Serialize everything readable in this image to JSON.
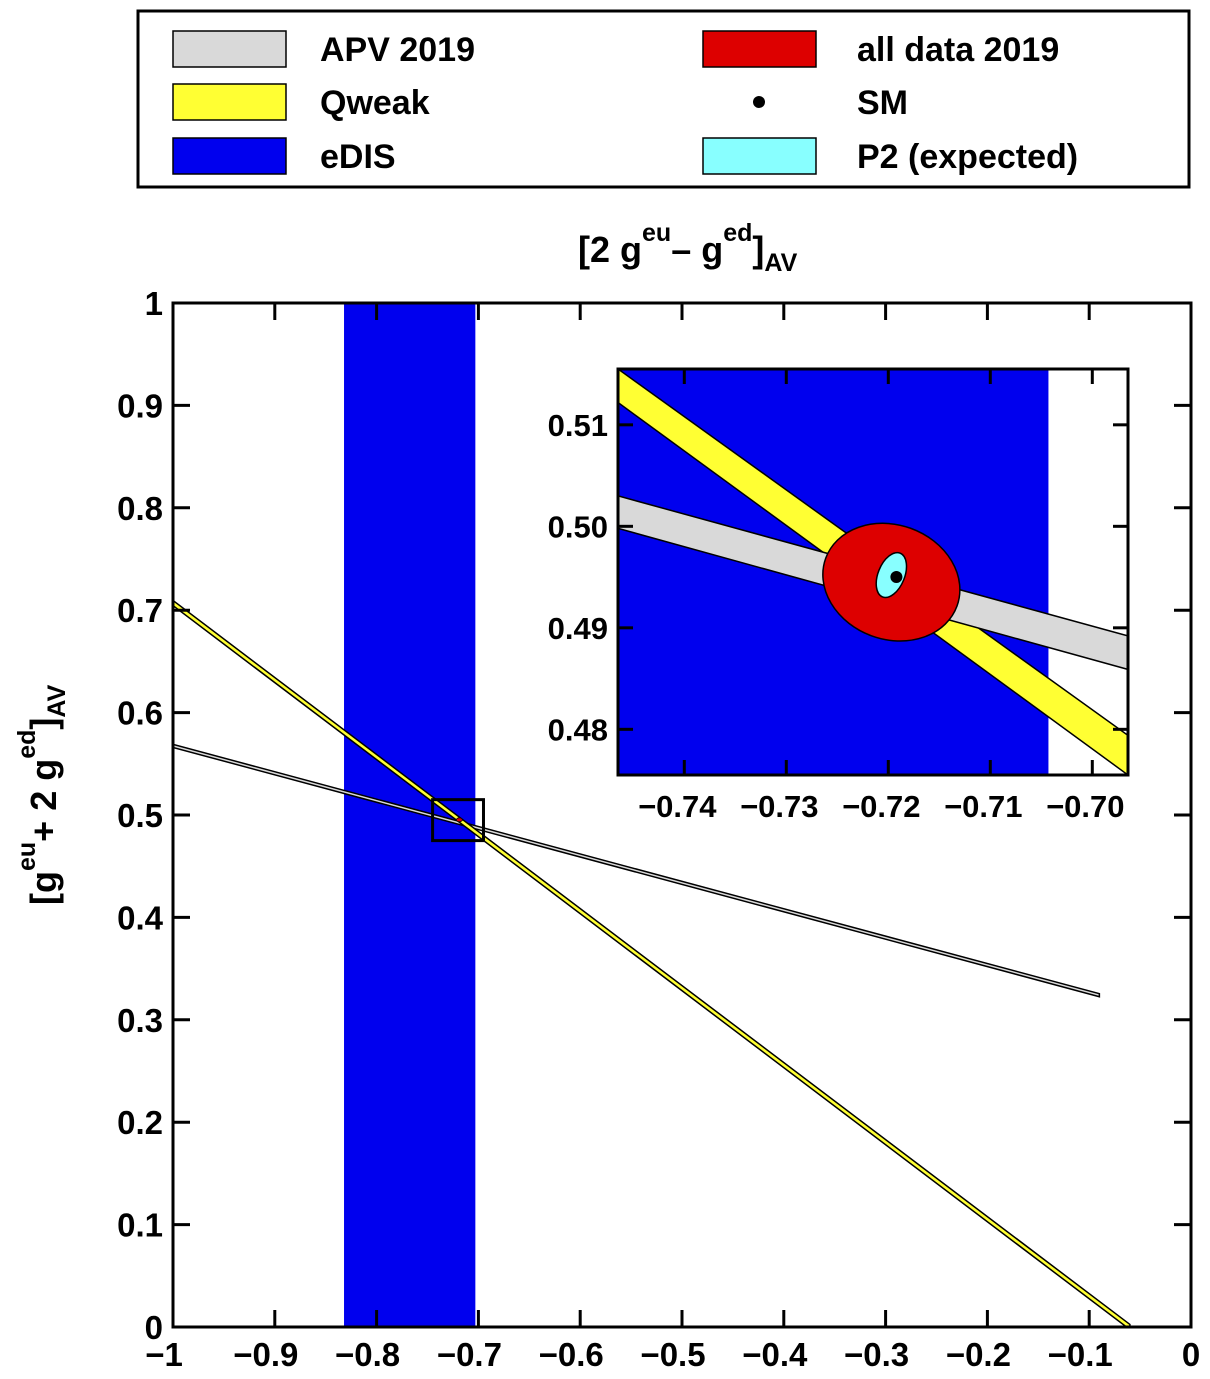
{
  "chart_data": {
    "type": "scatter",
    "title": "",
    "xlabel": {
      "main": "[2 g",
      "sup1": "eu",
      "mid": "– g",
      "sup2": "ed",
      "close": "]",
      "sub": "AV"
    },
    "ylabel": {
      "main": "[g",
      "sup1": "eu",
      "mid": "+ 2 g",
      "sup2": "ed",
      "close": "]",
      "sub": "AV"
    },
    "xlim": [
      -1,
      0
    ],
    "ylim": [
      0,
      1
    ],
    "xticks": [
      "−1",
      "−0.9",
      "−0.8",
      "−0.7",
      "−0.6",
      "−0.5",
      "−0.4",
      "−0.3",
      "−0.2",
      "−0.1",
      "0"
    ],
    "xtick_values": [
      -1,
      -0.9,
      -0.8,
      -0.7,
      -0.6,
      -0.5,
      -0.4,
      -0.3,
      -0.2,
      -0.1,
      0
    ],
    "yticks": [
      "0",
      "0.1",
      "0.2",
      "0.3",
      "0.4",
      "0.5",
      "0.6",
      "0.7",
      "0.8",
      "0.9",
      "1"
    ],
    "ytick_values": [
      0,
      0.1,
      0.2,
      0.3,
      0.4,
      0.5,
      0.6,
      0.7,
      0.8,
      0.9,
      1
    ],
    "legend_position": "top, above plot",
    "legend": [
      {
        "label": "APV 2019",
        "color": "#d9d9d9",
        "kind": "box"
      },
      {
        "label": "all data 2019",
        "color": "#dd0000",
        "kind": "box"
      },
      {
        "label": "Qweak",
        "color": "#ffff33",
        "kind": "box"
      },
      {
        "label": "SM",
        "color": "#000000",
        "kind": "dot"
      },
      {
        "label": "eDIS",
        "color": "#0000ee",
        "kind": "box"
      },
      {
        "label": "P2 (expected)",
        "color": "#88ffff",
        "kind": "box"
      }
    ],
    "series": [
      {
        "name": "eDIS",
        "kind": "vertical_band",
        "x": [
          -0.832,
          -0.703
        ],
        "color": "#0000ee"
      },
      {
        "name": "Qweak",
        "kind": "band",
        "x": [
          -1.0,
          -0.06
        ],
        "y_center": [
          0.707,
          0.0
        ],
        "half_width": 0.0025,
        "color": "#ffff33"
      },
      {
        "name": "APV 2019",
        "kind": "band",
        "x": [
          -1.0,
          -0.09
        ],
        "y_center": [
          0.5675,
          0.324
        ],
        "half_width": 0.0015,
        "color": "#d9d9d9"
      },
      {
        "name": "all data 2019",
        "kind": "ellipse",
        "center": [
          -0.7187,
          0.4953
        ],
        "color": "#dd0000"
      },
      {
        "name": "P2 (expected)",
        "kind": "ellipse",
        "center": [
          -0.7195,
          0.4958
        ],
        "color": "#88ffff"
      },
      {
        "name": "SM",
        "kind": "point",
        "x": -0.7185,
        "y": 0.4953,
        "color": "#000000"
      }
    ],
    "zoom_box": {
      "x": [
        -0.745,
        -0.695
      ],
      "y": [
        0.475,
        0.515
      ]
    },
    "inset": {
      "xlim": [
        -0.7465,
        -0.6965
      ],
      "ylim": [
        0.4755,
        0.5155
      ],
      "xticks": [
        "−0.74",
        "−0.73",
        "−0.72",
        "−0.71",
        "−0.70"
      ],
      "xtick_values": [
        -0.74,
        -0.73,
        -0.72,
        -0.71,
        -0.7
      ],
      "yticks": [
        "0.48",
        "0.49",
        "0.50",
        "0.51"
      ],
      "ytick_values": [
        0.48,
        0.49,
        0.5,
        0.51
      ],
      "series": [
        {
          "name": "eDIS",
          "kind": "vertical_band",
          "x_edge": -0.7043
        },
        {
          "name": "Qweak",
          "kind": "band",
          "upper": [
            [
              -0.7465,
              0.5155
            ],
            [
              -0.6965,
              0.4794
            ]
          ],
          "lower": [
            [
              -0.7465,
              0.5122
            ],
            [
              -0.6965,
              0.4755
            ]
          ]
        },
        {
          "name": "APV 2019",
          "kind": "band",
          "upper": [
            [
              -0.7465,
              0.503
            ],
            [
              -0.6965,
              0.4892
            ]
          ],
          "lower": [
            [
              -0.7465,
              0.4998
            ],
            [
              -0.6965,
              0.4859
            ]
          ]
        },
        {
          "name": "all data 2019",
          "kind": "ellipse",
          "center": [
            -0.7197,
            0.4945
          ],
          "semi_major": 0.0137,
          "semi_minor": 0.0017,
          "angle_deg": -20
        },
        {
          "name": "P2 (expected)",
          "kind": "ellipse",
          "center": [
            -0.7197,
            0.4952
          ],
          "semi_major": 0.0026,
          "semi_minor": 0.0007,
          "angle_deg": -22
        },
        {
          "name": "SM",
          "kind": "point",
          "x": -0.7195,
          "y": 0.4952
        }
      ]
    }
  }
}
